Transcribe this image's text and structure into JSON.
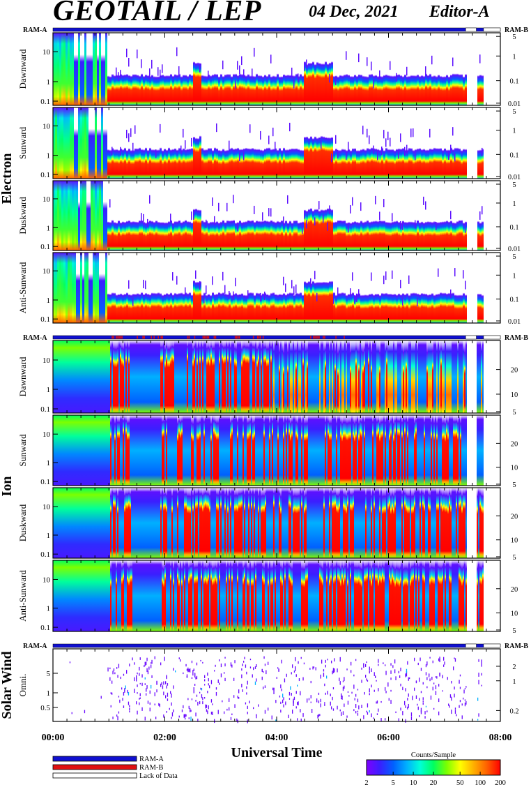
{
  "header": {
    "title": "GEOTAIL / LEP",
    "date": "04 Dec, 2021",
    "editor": "Editor-A"
  },
  "colors": {
    "ram_a": "#1010d0",
    "ram_b": "#e01010",
    "no_data": "#ffffff",
    "colorbar": [
      "#7f00ff",
      "#3a1fff",
      "#0060ff",
      "#00b0ff",
      "#00ffd8",
      "#00ff60",
      "#7cff00",
      "#ffff00",
      "#ffb000",
      "#ff6000",
      "#ff0000"
    ]
  },
  "chart_data": {
    "type": "heatmap",
    "x_axis": {
      "label": "Universal Time",
      "range": [
        "00:00",
        "08:00"
      ],
      "ticks": [
        "00:00",
        "02:00",
        "04:00",
        "06:00",
        "08:00"
      ],
      "minor_tick_minutes": 15
    },
    "colorbar": {
      "title": "Counts/Sample",
      "ticks": [
        "2",
        "5",
        "10",
        "20",
        "50",
        "100",
        "200"
      ],
      "range": [
        2,
        200
      ],
      "scale": "log"
    },
    "legend": [
      {
        "label": "RAM-A",
        "color": "#1010d0"
      },
      {
        "label": "RAM-B",
        "color": "#e01010"
      },
      {
        "label": "Lack of Data",
        "color": "#ffffff"
      }
    ],
    "groups": [
      {
        "name": "Electron",
        "ram_left": "RAM-A",
        "ram_right": "RAM-B",
        "panels": [
          {
            "label": "Dawnward",
            "left_ticks": [
              "10",
              "1",
              "0.1"
            ],
            "right_ticks": [
              "5",
              "1",
              "0.1",
              "0.01"
            ]
          },
          {
            "label": "Sunward",
            "left_ticks": [
              "10",
              "1",
              "0.1"
            ],
            "right_ticks": [
              "5",
              "1",
              "0.1",
              "0.01"
            ]
          },
          {
            "label": "Duskward",
            "left_ticks": [
              "10",
              "1",
              "0.1"
            ],
            "right_ticks": [
              "5",
              "1",
              "0.1",
              "0.01"
            ]
          },
          {
            "label": "Anti-Sunward",
            "left_ticks": [
              "10",
              "1",
              "0.1"
            ],
            "right_ticks": [
              "5",
              "1",
              "0.1",
              "0.01"
            ]
          }
        ]
      },
      {
        "name": "Ion",
        "ram_left": "RAM-A",
        "ram_right": "RAM-B",
        "panels": [
          {
            "label": "Dawnward",
            "left_ticks": [
              "10",
              "1",
              "0.1"
            ],
            "right_ticks": [
              "20",
              "10",
              "5"
            ]
          },
          {
            "label": "Sunward",
            "left_ticks": [
              "10",
              "1",
              "0.1"
            ],
            "right_ticks": [
              "20",
              "10",
              "5"
            ]
          },
          {
            "label": "Duskward",
            "left_ticks": [
              "10",
              "1",
              "0.1"
            ],
            "right_ticks": [
              "20",
              "10",
              "5"
            ]
          },
          {
            "label": "Anti-Sunward",
            "left_ticks": [
              "10",
              "1",
              "0.1"
            ],
            "right_ticks": [
              "20",
              "10",
              "5"
            ]
          }
        ]
      },
      {
        "name": "Solar Wind",
        "ram_left": "RAM-A",
        "ram_right": "RAM-B",
        "panels": [
          {
            "label": "Omni.",
            "left_ticks": [
              "5",
              "1",
              "0.5"
            ],
            "right_ticks": [
              "2",
              "1",
              "0.2"
            ]
          }
        ]
      }
    ],
    "data_gaps_hours": [
      [
        7.38,
        7.57
      ],
      [
        7.7,
        8.0
      ]
    ]
  }
}
